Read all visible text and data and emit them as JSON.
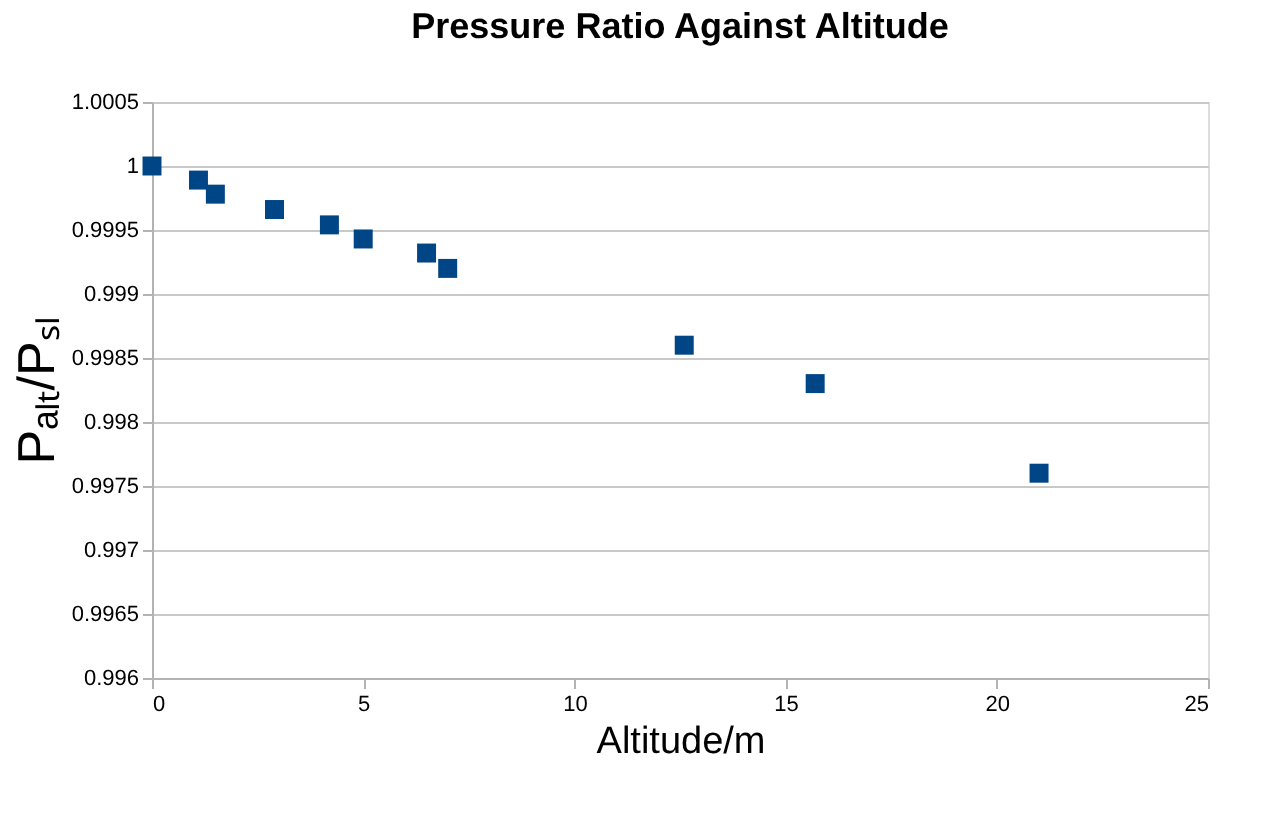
{
  "chart_data": {
    "type": "scatter",
    "title": "Pressure Ratio Against Altitude",
    "xlabel": "Altitude/m",
    "ylabel": "Pₐₗₜ/Pₛₗ",
    "x": [
      0,
      1.1,
      1.5,
      2.9,
      4.2,
      5,
      6.5,
      7,
      12.6,
      15.7,
      21
    ],
    "series": [
      {
        "color": "#004586",
        "values": [
          1.0,
          0.99989,
          0.99978,
          0.99966,
          0.99954,
          0.99943,
          0.99932,
          0.9992,
          0.9986,
          0.9983,
          0.9976
        ]
      }
    ],
    "xlim": [
      0,
      25
    ],
    "xticks": [
      0,
      5,
      10,
      15,
      20,
      25
    ],
    "ylim": [
      0.996,
      1.0005
    ],
    "yticks": [
      0.996,
      0.9965,
      0.997,
      0.9975,
      0.998,
      0.9985,
      0.999,
      0.9995,
      1,
      1.0005
    ],
    "grid": "y",
    "marker": "square"
  }
}
